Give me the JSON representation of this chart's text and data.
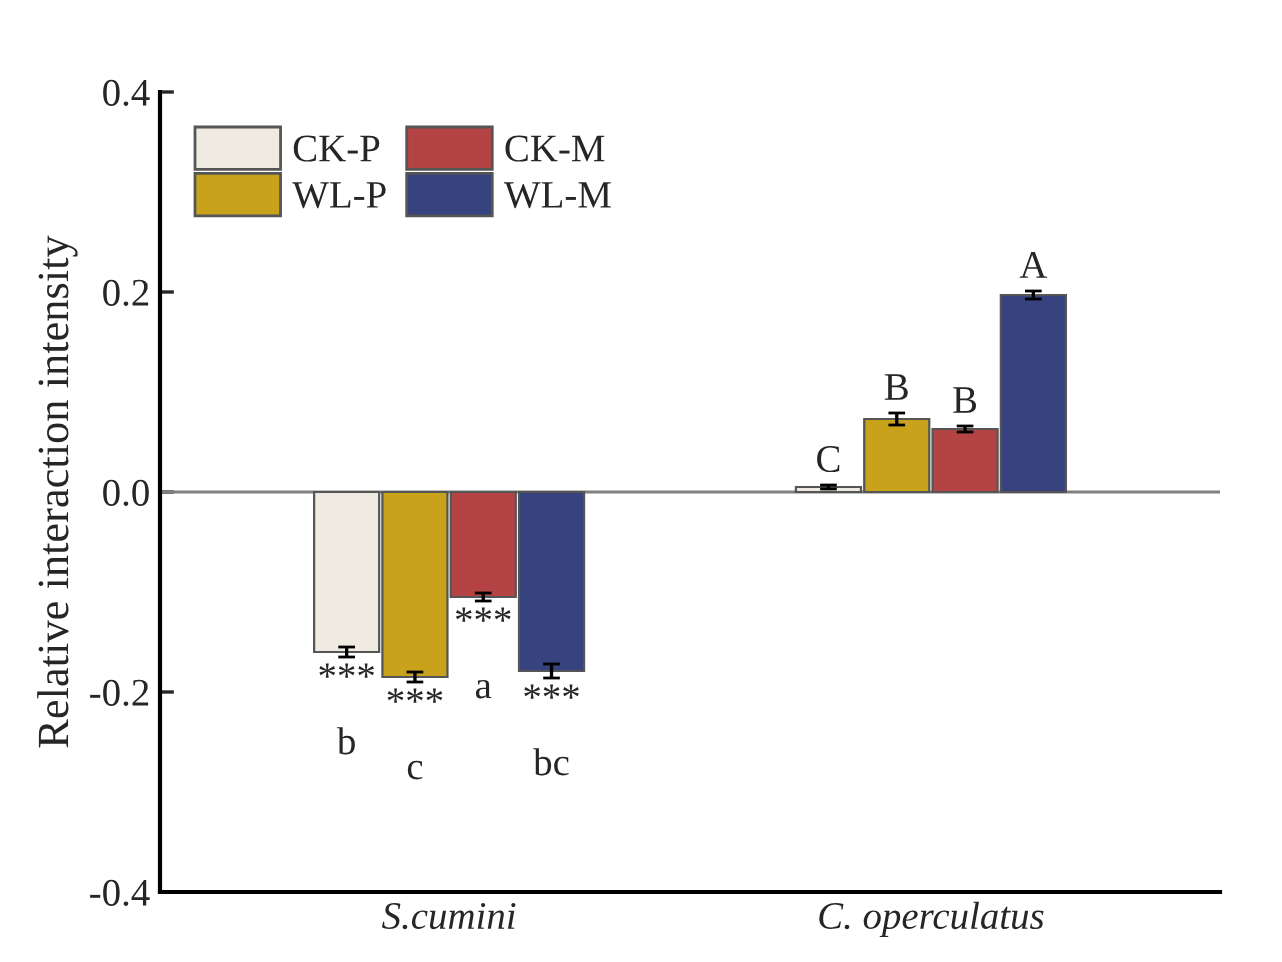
{
  "chart_data": {
    "type": "bar",
    "ylabel": "Relative interaction intensity",
    "categories": [
      "S.cumini",
      "C. operculatus"
    ],
    "series": [
      {
        "name": "CK-P",
        "color": "#efebe0",
        "values": [
          -0.16,
          0.005
        ],
        "errors": [
          0.005,
          0.002
        ],
        "value_labels": [
          "***\n\nb",
          "C"
        ]
      },
      {
        "name": "WL-P",
        "color": "#c9a21c",
        "values": [
          -0.185,
          0.073
        ],
        "errors": [
          0.005,
          0.006
        ],
        "value_labels": [
          "***\n\nc",
          "B"
        ]
      },
      {
        "name": "CK-M",
        "color": "#b44444",
        "values": [
          -0.105,
          0.063
        ],
        "errors": [
          0.004,
          0.003
        ],
        "value_labels": [
          "***\n\na",
          "B"
        ]
      },
      {
        "name": "WL-M",
        "color": "#37437e",
        "values": [
          -0.179,
          0.197
        ],
        "errors": [
          0.007,
          0.004
        ],
        "value_labels": [
          "***\n\nbc",
          "A"
        ]
      }
    ],
    "ylim": [
      -0.4,
      0.4
    ],
    "yticks": [
      {
        "value": -0.4,
        "label": "-0.4"
      },
      {
        "value": -0.2,
        "label": "-0.2"
      },
      {
        "value": 0,
        "label": "0.0"
      },
      0.2,
      0.4
    ],
    "ref_lines": [
      {
        "axis": "y",
        "value": 0,
        "color": "#808080"
      }
    ],
    "legend": "top left",
    "grid": false
  }
}
